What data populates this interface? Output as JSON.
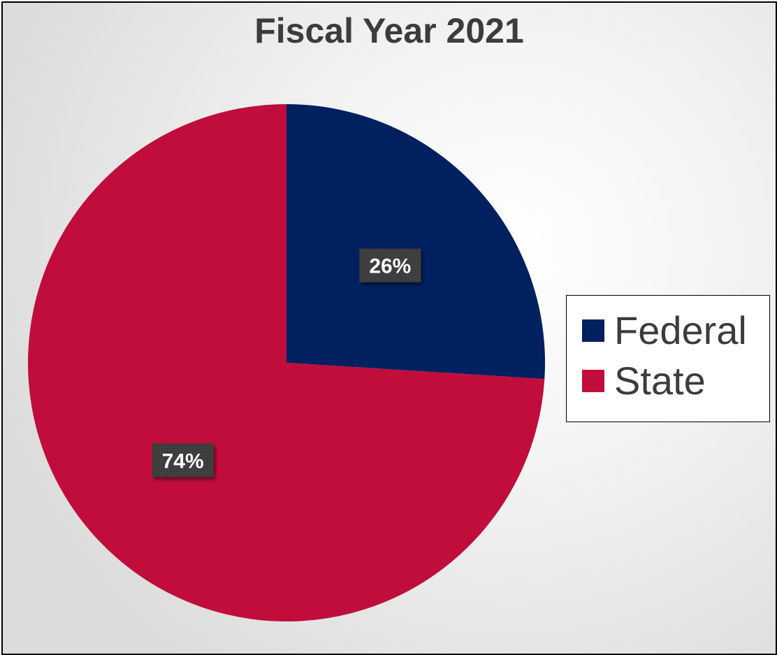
{
  "chart_data": {
    "type": "pie",
    "title": "Fiscal Year 2021",
    "legend_position": "right",
    "slices": [
      {
        "name": "Federal",
        "value": 26,
        "label": "26%",
        "color": "#002060"
      },
      {
        "name": "State",
        "value": 74,
        "label": "74%",
        "color": "#c00d3b"
      }
    ],
    "label_style": {
      "background": "#404040",
      "text_color": "#ffffff"
    }
  }
}
